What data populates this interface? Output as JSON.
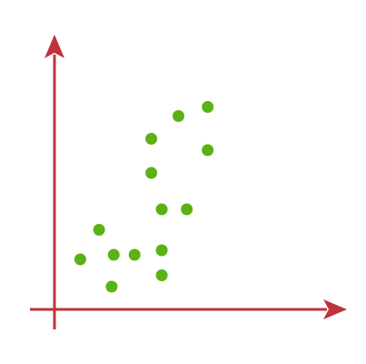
{
  "chart_data": {
    "type": "scatter",
    "title": "",
    "xlabel": "",
    "ylabel": "",
    "xlim": [
      0,
      10
    ],
    "ylim": [
      0,
      10
    ],
    "grid": false,
    "legend": "none",
    "points": [
      {
        "x": 0.8,
        "y": 1.8
      },
      {
        "x": 1.7,
        "y": 3.1
      },
      {
        "x": 2.3,
        "y": 0.6
      },
      {
        "x": 2.4,
        "y": 2.0
      },
      {
        "x": 3.4,
        "y": 2.0
      },
      {
        "x": 4.2,
        "y": 7.1
      },
      {
        "x": 4.2,
        "y": 5.6
      },
      {
        "x": 4.7,
        "y": 4.0
      },
      {
        "x": 4.7,
        "y": 2.2
      },
      {
        "x": 4.7,
        "y": 1.1
      },
      {
        "x": 5.5,
        "y": 8.1
      },
      {
        "x": 5.9,
        "y": 4.0
      },
      {
        "x": 6.9,
        "y": 8.5
      },
      {
        "x": 6.9,
        "y": 6.6
      }
    ]
  },
  "colors": {
    "axis": "#c0333c",
    "point": "#5bb214",
    "background": "#ffffff"
  }
}
